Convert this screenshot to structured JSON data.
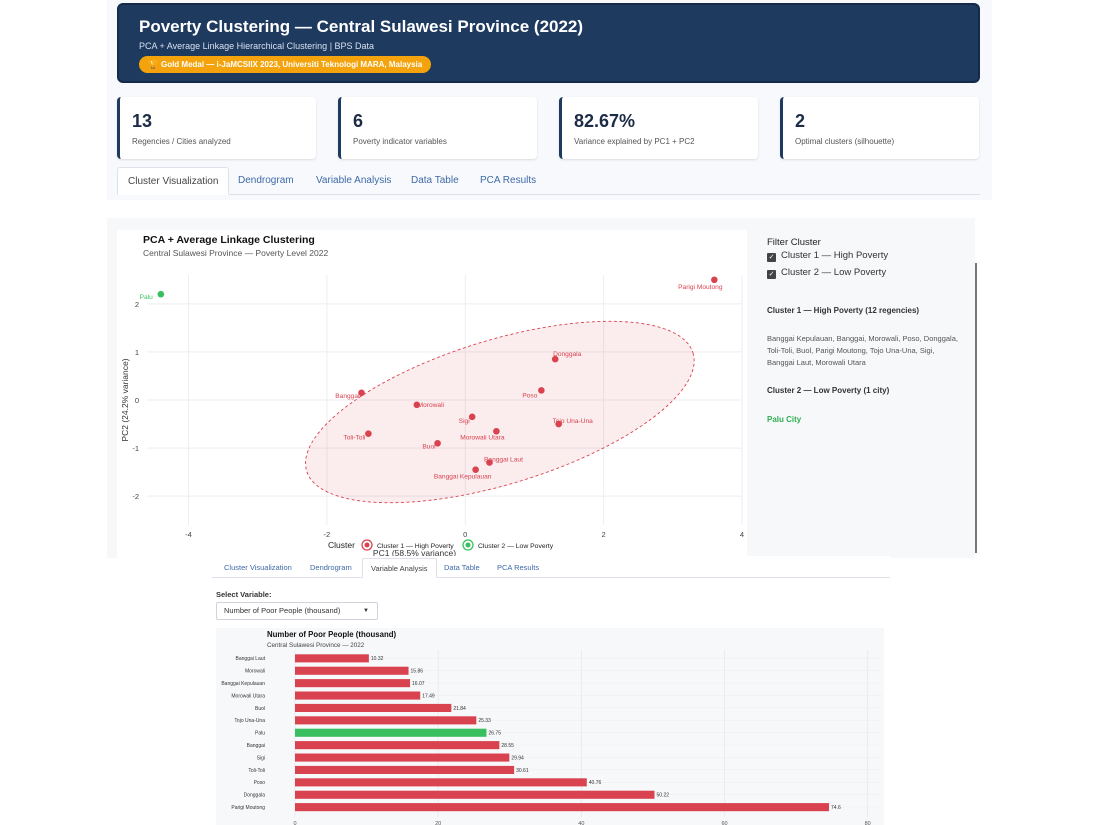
{
  "header": {
    "title": "Poverty Clustering — Central Sulawesi Province (2022)",
    "subtitle": "PCA + Average Linkage Hierarchical Clustering | BPS Data",
    "badge": "Gold Medal — i-JaMCSIIX 2023, Universiti Teknologi MARA, Malaysia",
    "badge_icon": "trophy-icon"
  },
  "stats": [
    {
      "value": "13",
      "label": "Regencies / Cities analyzed"
    },
    {
      "value": "6",
      "label": "Poverty indicator variables"
    },
    {
      "value": "82.67%",
      "label": "Variance explained by PC1 + PC2"
    },
    {
      "value": "2",
      "label": "Optimal clusters (silhouette)"
    }
  ],
  "tabs": [
    "Cluster Visualization",
    "Dendrogram",
    "Variable Analysis",
    "Data Table",
    "PCA Results"
  ],
  "cluster_panel": {
    "filter_title": "Filter Cluster",
    "filters": [
      "Cluster 1 — High Poverty",
      "Cluster 2 — Low Poverty"
    ],
    "cluster1_heading": "Cluster 1 — High Poverty (12 regencies)",
    "cluster1_members": "Banggai Kepulauan, Banggai, Morowali, Poso, Donggala, Toli-Toli, Buol, Parigi Moutong, Tojo Una-Una, Sigi, Banggai Laut, Morowali Utara",
    "cluster2_heading": "Cluster 2 — Low Poverty (1 city)",
    "cluster2_members": "Palu City"
  },
  "variable_panel": {
    "select_label": "Select Variable:",
    "selected": "Number of Poor People (thousand)"
  },
  "colors": {
    "navy": "#1f3a5f",
    "badge": "#f4a30c",
    "cluster1": "#d9434f",
    "cluster2": "#39bf5f",
    "link": "#3d6aa8"
  },
  "chart_data": [
    {
      "type": "scatter",
      "title": "PCA + Average Linkage Clustering",
      "subtitle": "Central Sulawesi Province — Poverty Level 2022",
      "xlabel": "PC1 (58.5% variance)",
      "ylabel": "PC2 (24.2% variance)",
      "xlim": [
        -4.6,
        4
      ],
      "ylim": [
        -2.6,
        2.6
      ],
      "xticks": [
        -4,
        -2,
        0,
        2,
        4
      ],
      "yticks": [
        -2,
        -1,
        0,
        1,
        2
      ],
      "legend_title": "Cluster",
      "legend_position": "bottom",
      "series": [
        {
          "name": "Cluster 1 — High Poverty",
          "points": [
            {
              "label": "Parigi Moutong",
              "x": 3.6,
              "y": 2.5
            },
            {
              "label": "Donggala",
              "x": 1.3,
              "y": 0.85
            },
            {
              "label": "Poso",
              "x": 1.1,
              "y": 0.2
            },
            {
              "label": "Tojo Una-Una",
              "x": 1.35,
              "y": -0.5
            },
            {
              "label": "Banggai",
              "x": -1.5,
              "y": 0.15
            },
            {
              "label": "Morowali",
              "x": -0.7,
              "y": -0.1
            },
            {
              "label": "Sigi",
              "x": 0.1,
              "y": -0.35
            },
            {
              "label": "Morowali Utara",
              "x": 0.45,
              "y": -0.65
            },
            {
              "label": "Toli-Toli",
              "x": -1.4,
              "y": -0.7
            },
            {
              "label": "Buol",
              "x": -0.4,
              "y": -0.9
            },
            {
              "label": "Banggai Laut",
              "x": 0.35,
              "y": -1.3
            },
            {
              "label": "Banggai Kepulauan",
              "x": 0.15,
              "y": -1.45
            }
          ]
        },
        {
          "name": "Cluster 2 — Low Poverty",
          "points": [
            {
              "label": "Palu",
              "x": -4.4,
              "y": 2.2
            }
          ]
        }
      ]
    },
    {
      "type": "bar",
      "orientation": "horizontal",
      "title": "Number of Poor People (thousand)",
      "subtitle": "Central Sulawesi Province — 2022",
      "xlim": [
        0,
        82
      ],
      "xticks": [
        0,
        20,
        40,
        60,
        80
      ],
      "grid": true,
      "categories": [
        "Banggai Laut",
        "Morowali",
        "Banggai Kepulauan",
        "Morowali Utara",
        "Buol",
        "Tojo Una-Una",
        "Palu",
        "Banggai",
        "Sigi",
        "Toli-Toli",
        "Poso",
        "Donggala",
        "Parigi Moutong"
      ],
      "values": [
        10.32,
        15.86,
        16.07,
        17.49,
        21.84,
        25.33,
        26.75,
        28.55,
        29.94,
        30.61,
        40.76,
        50.22,
        74.6
      ],
      "value_labels": [
        "10.32",
        "15.86",
        "16.07",
        "17.49",
        "21.84",
        "25.33",
        "26.75",
        "28.55",
        "29.94",
        "30.61",
        "40.76",
        "50.22",
        "74.6"
      ],
      "cluster": [
        1,
        1,
        1,
        1,
        1,
        1,
        2,
        1,
        1,
        1,
        1,
        1,
        1
      ]
    }
  ]
}
